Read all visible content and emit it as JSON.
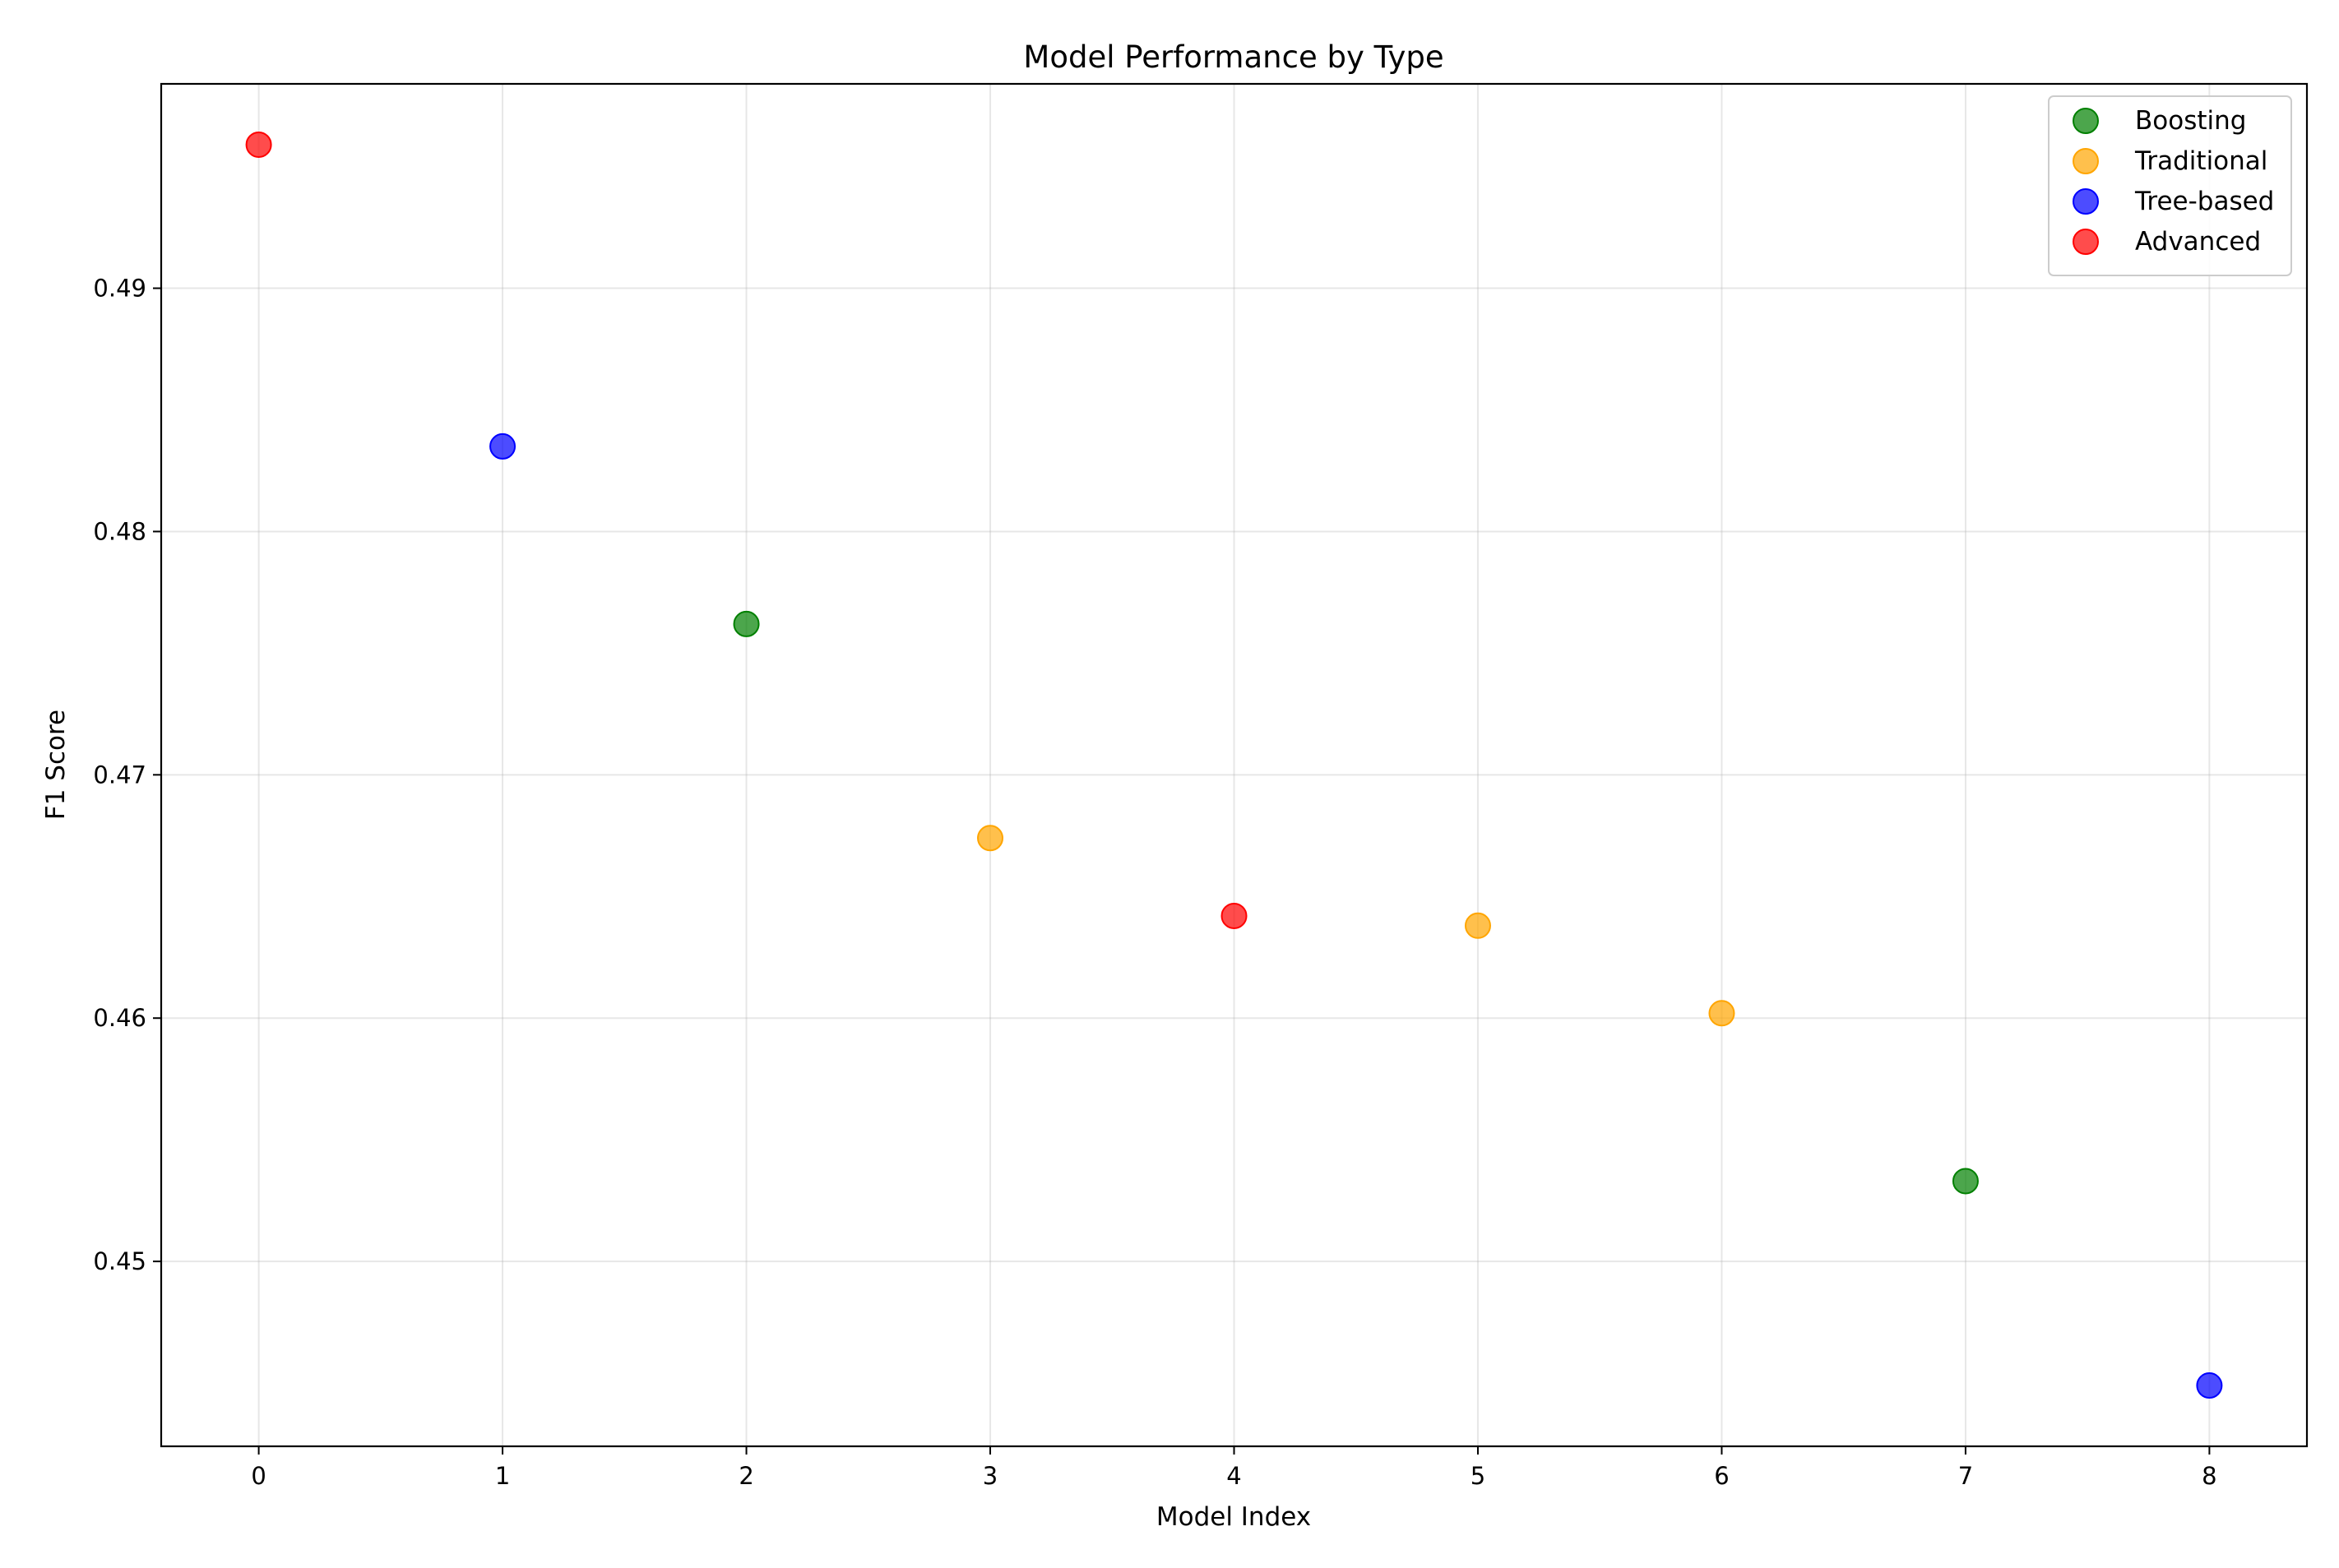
{
  "chart_data": {
    "type": "scatter",
    "title": "Model Performance by Type",
    "xlabel": "Model Index",
    "ylabel": "F1 Score",
    "xlim": [
      -0.4,
      8.4
    ],
    "ylim": [
      0.4424,
      0.4984
    ],
    "xticks": [
      0,
      1,
      2,
      3,
      4,
      5,
      6,
      7,
      8
    ],
    "xtick_labels": [
      "0",
      "1",
      "2",
      "3",
      "4",
      "5",
      "6",
      "7",
      "8"
    ],
    "yticks": [
      0.45,
      0.46,
      0.47,
      0.48,
      0.49
    ],
    "ytick_labels": [
      "0.45",
      "0.46",
      "0.47",
      "0.48",
      "0.49"
    ],
    "grid": true,
    "legend_position": "top-right",
    "series": [
      {
        "name": "Boosting",
        "color": "#008000",
        "points": [
          {
            "x": 2,
            "y": 0.4762
          },
          {
            "x": 7,
            "y": 0.4533
          }
        ]
      },
      {
        "name": "Traditional",
        "color": "#FFA500",
        "points": [
          {
            "x": 3,
            "y": 0.4674
          },
          {
            "x": 5,
            "y": 0.4638
          },
          {
            "x": 6,
            "y": 0.4602
          }
        ]
      },
      {
        "name": "Tree-based",
        "color": "#0000FF",
        "points": [
          {
            "x": 1,
            "y": 0.4835
          },
          {
            "x": 8,
            "y": 0.4449
          }
        ]
      },
      {
        "name": "Advanced",
        "color": "#FF0000",
        "points": [
          {
            "x": 0,
            "y": 0.4959
          },
          {
            "x": 4,
            "y": 0.4642
          }
        ]
      }
    ]
  }
}
